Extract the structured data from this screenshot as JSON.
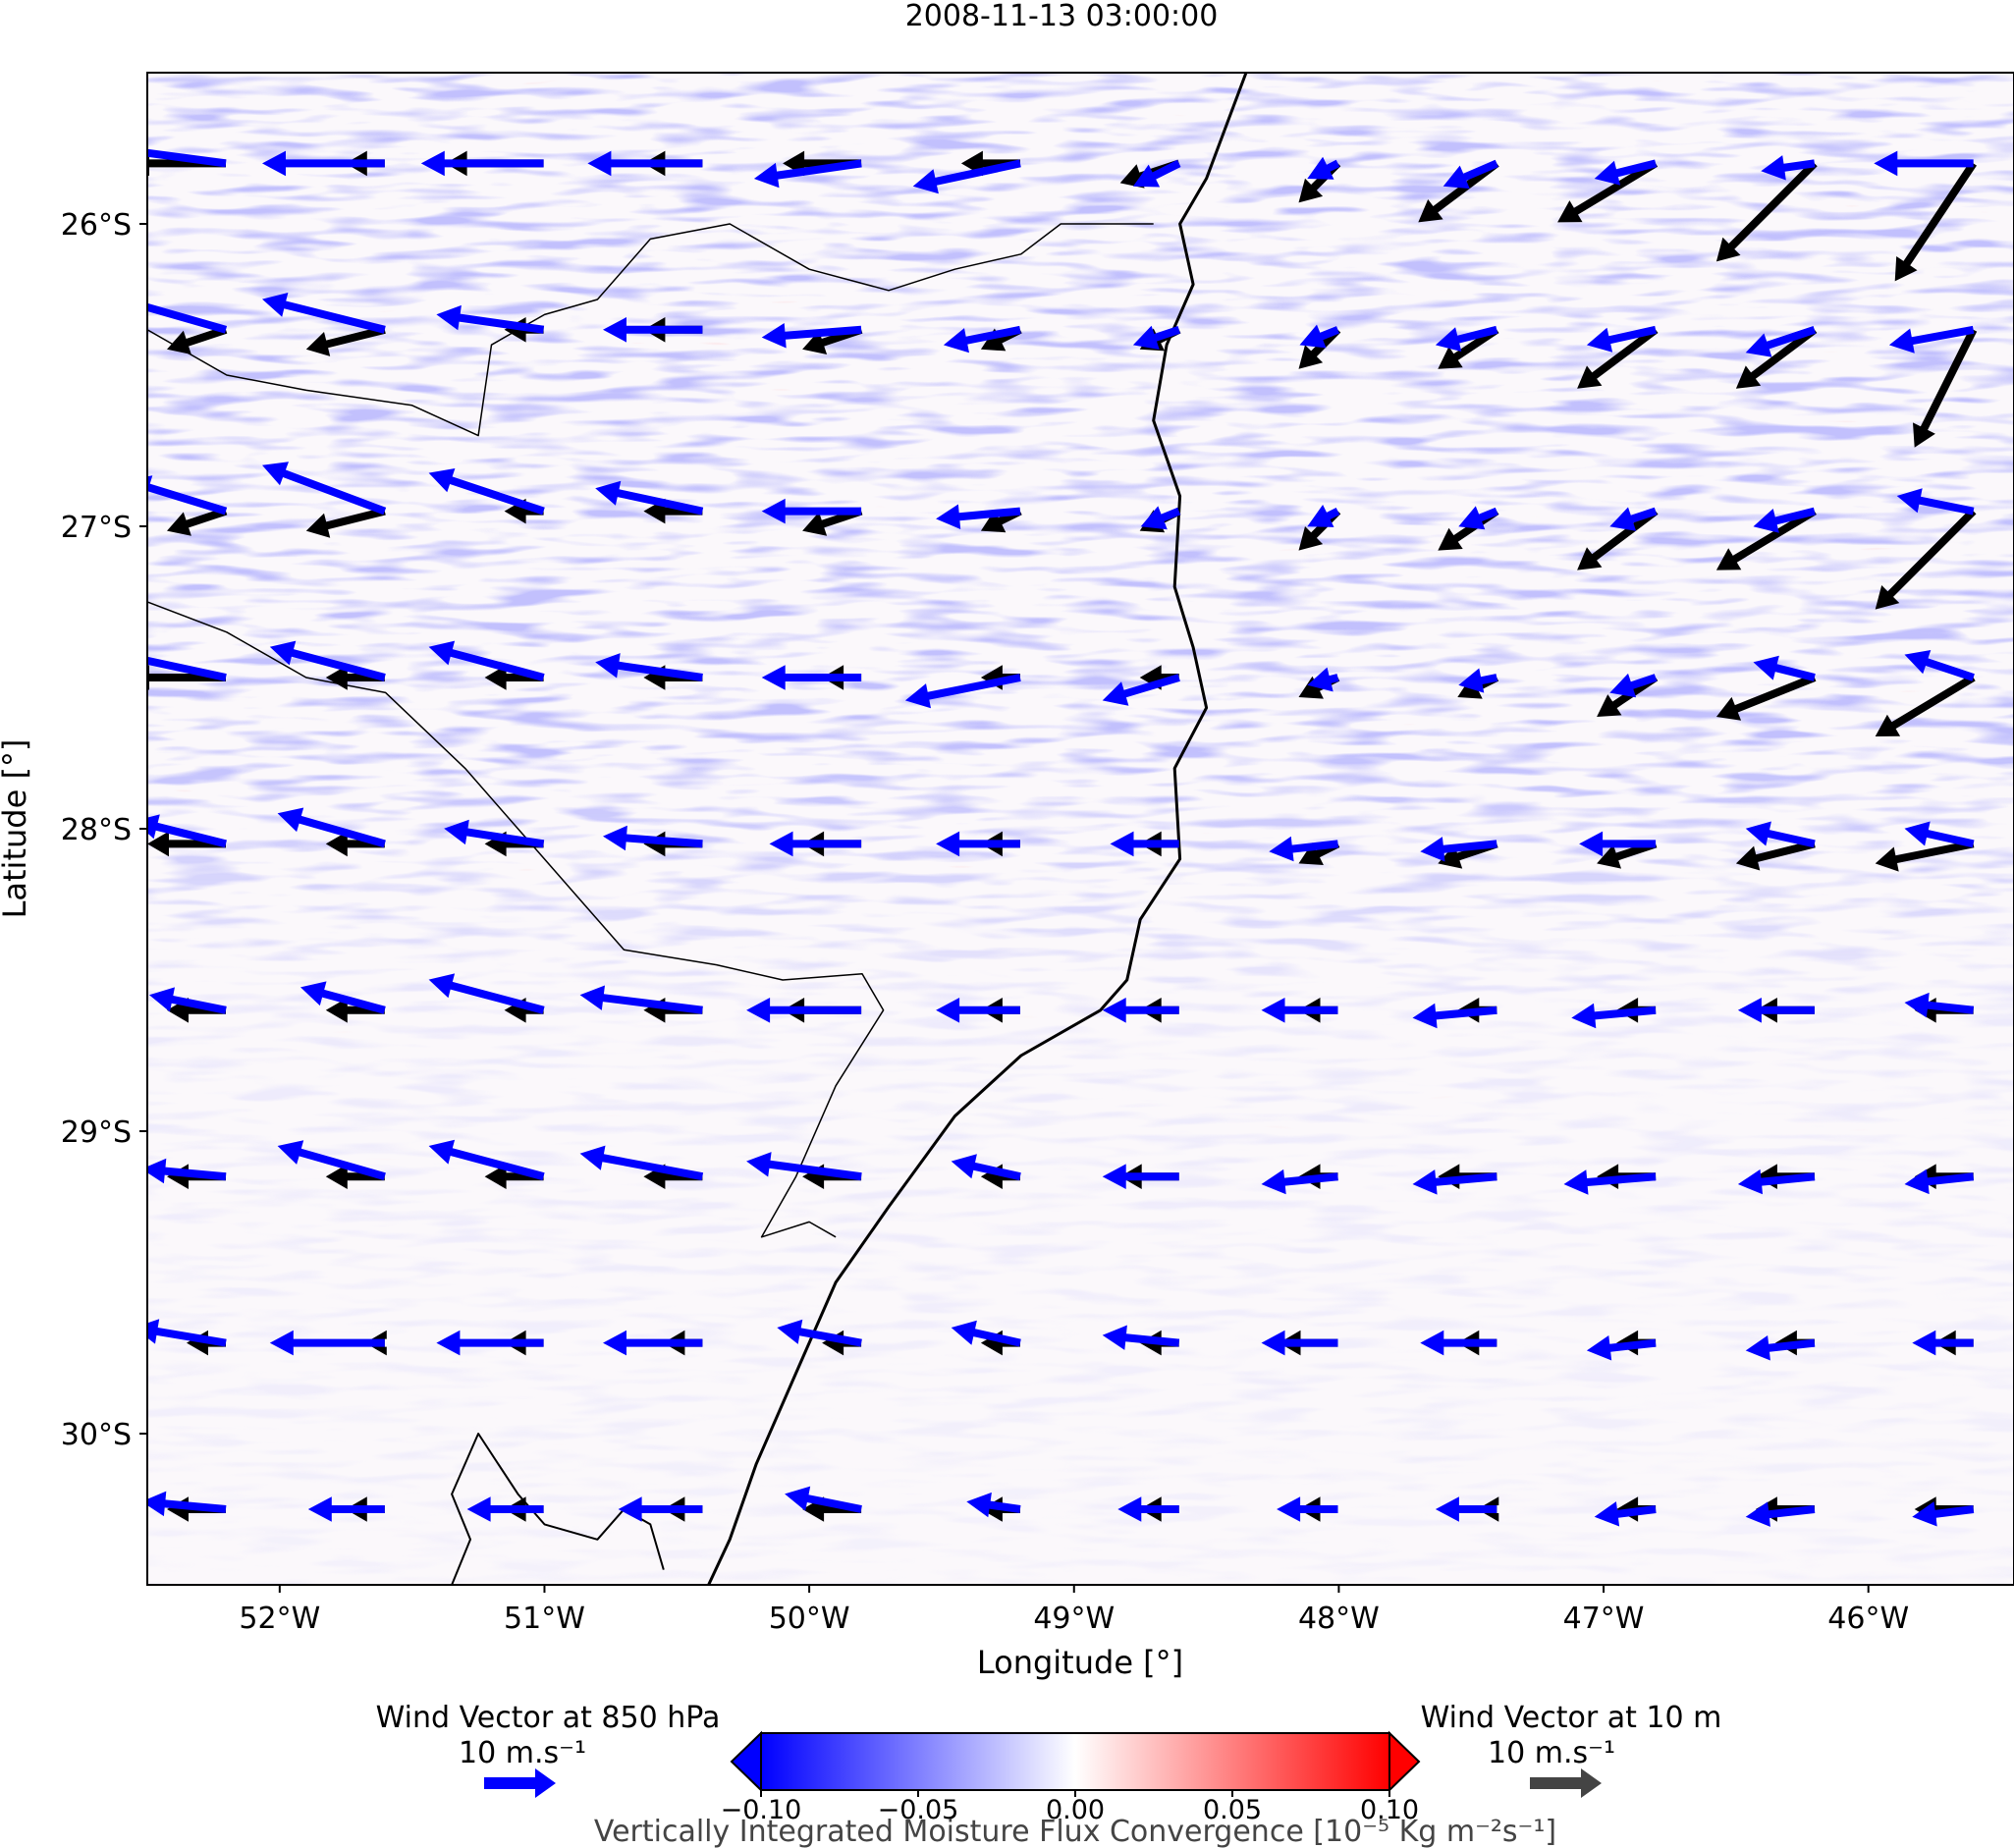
{
  "title": "2008-11-13 03:00:00",
  "x_axis": {
    "label": "Longitude [°]",
    "range": [
      -52.5,
      -45.45
    ],
    "ticks": [
      {
        "value": -52,
        "label": "52°W"
      },
      {
        "value": -51,
        "label": "51°W"
      },
      {
        "value": -50,
        "label": "50°W"
      },
      {
        "value": -49,
        "label": "49°W"
      },
      {
        "value": -48,
        "label": "48°W"
      },
      {
        "value": -47,
        "label": "47°W"
      },
      {
        "value": -46,
        "label": "46°W"
      }
    ]
  },
  "y_axis": {
    "label": "Latitude [°]",
    "range": [
      -30.5,
      -25.5
    ],
    "ticks": [
      {
        "value": -26,
        "label": "26°S"
      },
      {
        "value": -27,
        "label": "27°S"
      },
      {
        "value": -28,
        "label": "28°S"
      },
      {
        "value": -29,
        "label": "29°S"
      },
      {
        "value": -30,
        "label": "30°S"
      }
    ]
  },
  "colorbar": {
    "label": "Vertically Integrated Moisture Flux Convergence [10⁻⁵ Kg m⁻²s⁻¹]",
    "cmap": "bwr",
    "range": [
      -0.1,
      0.1
    ],
    "extend": "both",
    "ticks": [
      {
        "value": -0.1,
        "label": "−0.10"
      },
      {
        "value": -0.05,
        "label": "−0.05"
      },
      {
        "value": 0.0,
        "label": "0.00"
      },
      {
        "value": 0.05,
        "label": "0.05"
      },
      {
        "value": 0.1,
        "label": "0.10"
      }
    ]
  },
  "quiver_keys": {
    "wind_850": {
      "title": "Wind Vector at 850 hPa",
      "value_label": "10 m.s⁻¹",
      "color": "#0000ff"
    },
    "wind_10m": {
      "title": "Wind Vector at 10 m",
      "value_label": "10 m.s⁻¹",
      "color": "#444444"
    }
  },
  "colors": {
    "wind_850": "#0000ff",
    "wind_10m": "#000000",
    "coastline": "#000000"
  },
  "wind_grid": {
    "lons": [
      -52.5,
      -51.9,
      -51.3,
      -50.7,
      -50.1,
      -49.5,
      -48.9,
      -48.3,
      -47.7,
      -47.1,
      -46.5,
      -45.9
    ],
    "lats": [
      -25.8,
      -26.35,
      -26.95,
      -27.5,
      -28.05,
      -28.6,
      -29.15,
      -29.7,
      -30.25
    ],
    "u850": [
      [
        -15,
        -16,
        -16,
        -15,
        -14,
        -14,
        -6,
        -4,
        -7,
        -8,
        -7,
        -13
      ],
      [
        -14,
        -16,
        -14,
        -13,
        -13,
        -10,
        -6,
        -5,
        -8,
        -9,
        -9,
        -11
      ],
      [
        -13,
        -16,
        -15,
        -14,
        -13,
        -11,
        -5,
        -4,
        -5,
        -6,
        -8,
        -10
      ],
      [
        -14,
        -15,
        -15,
        -14,
        -13,
        -15,
        -10,
        -4,
        -5,
        -6,
        -8,
        -9
      ],
      [
        -12,
        -14,
        -13,
        -13,
        -12,
        -11,
        -9,
        -9,
        -10,
        -10,
        -9,
        -9
      ],
      [
        -10,
        -11,
        -15,
        -16,
        -15,
        -11,
        -10,
        -10,
        -11,
        -11,
        -10,
        -9
      ],
      [
        -11,
        -14,
        -15,
        -16,
        -15,
        -9,
        -10,
        -10,
        -11,
        -12,
        -10,
        -9
      ],
      [
        -12,
        -15,
        -14,
        -13,
        -11,
        -9,
        -10,
        -10,
        -10,
        -9,
        -9,
        -8
      ],
      [
        -11,
        -10,
        -10,
        -11,
        -10,
        -7,
        -8,
        -8,
        -8,
        -8,
        -9,
        -8
      ]
    ],
    "v850": [
      [
        2,
        0,
        0,
        0,
        -2,
        -3,
        -3,
        -2,
        -3,
        -2,
        -1,
        0
      ],
      [
        4,
        4,
        2,
        0,
        -1,
        -2,
        -2,
        -2,
        -2,
        -2,
        -3,
        -2
      ],
      [
        4,
        6,
        5,
        3,
        0,
        -1,
        -2,
        -2,
        -2,
        -2,
        -2,
        2
      ],
      [
        3,
        4,
        4,
        2,
        0,
        -3,
        -3,
        -1,
        -1,
        -2,
        2,
        3
      ],
      [
        3,
        4,
        2,
        1,
        0,
        0,
        0,
        -1,
        -1,
        0,
        2,
        2
      ],
      [
        2,
        3,
        4,
        2,
        0,
        0,
        0,
        0,
        -1,
        -1,
        0,
        1
      ],
      [
        1,
        4,
        4,
        3,
        2,
        2,
        0,
        -1,
        -1,
        -1,
        -1,
        -1
      ],
      [
        2,
        0,
        0,
        0,
        2,
        2,
        1,
        0,
        0,
        -1,
        -1,
        0
      ],
      [
        1,
        0,
        0,
        0,
        2,
        1,
        0,
        0,
        0,
        -1,
        -1,
        -1
      ]
    ],
    "u10": [
      [
        -5,
        -2,
        -5,
        -3,
        -4,
        -3,
        -3,
        -2,
        -4,
        -5,
        -5,
        -4
      ],
      [
        -3,
        -4,
        -2,
        -3,
        -3,
        -2,
        -2,
        -2,
        -3,
        -4,
        -4,
        -3
      ],
      [
        -3,
        -4,
        -2,
        -3,
        -3,
        -2,
        -2,
        -2,
        -3,
        -4,
        -5,
        -5
      ],
      [
        -5,
        -3,
        -3,
        -3,
        -2,
        -2,
        -2,
        -2,
        -2,
        -3,
        -5,
        -5
      ],
      [
        -4,
        -3,
        -3,
        -3,
        -3,
        -2,
        -2,
        -2,
        -3,
        -3,
        -4,
        -5
      ],
      [
        -3,
        -3,
        -2,
        -3,
        -4,
        -2,
        -2,
        -2,
        -2,
        -2,
        -3,
        -3
      ],
      [
        -3,
        -3,
        -3,
        -3,
        -3,
        -2,
        -3,
        -2,
        -3,
        -3,
        -3,
        -3
      ],
      [
        -2,
        -1,
        -2,
        -2,
        -2,
        -2,
        -2,
        -3,
        -2,
        -2,
        -2,
        -2
      ],
      [
        -3,
        -2,
        -2,
        -2,
        -3,
        -2,
        -2,
        -2,
        -1,
        -2,
        -3,
        -3
      ]
    ],
    "v10": [
      [
        0,
        0,
        0,
        0,
        0,
        0,
        -1,
        -2,
        -3,
        -3,
        -5,
        -6
      ],
      [
        -1,
        -1,
        0,
        0,
        -1,
        -1,
        -1,
        -2,
        -2,
        -3,
        -3,
        -6
      ],
      [
        -1,
        -1,
        0,
        0,
        -1,
        -1,
        -1,
        -2,
        -2,
        -3,
        -3,
        -5
      ],
      [
        0,
        0,
        0,
        0,
        0,
        0,
        0,
        -1,
        -1,
        -2,
        -2,
        -3
      ],
      [
        0,
        0,
        0,
        0,
        0,
        0,
        0,
        -1,
        -1,
        -1,
        -1,
        -1
      ],
      [
        0,
        0,
        0,
        0,
        0,
        0,
        0,
        0,
        0,
        0,
        0,
        0
      ],
      [
        0,
        0,
        0,
        0,
        0,
        0,
        0,
        0,
        0,
        0,
        0,
        0
      ],
      [
        0,
        0,
        0,
        0,
        0,
        0,
        0,
        0,
        0,
        0,
        0,
        0
      ],
      [
        0,
        0,
        0,
        0,
        0,
        0,
        0,
        0,
        0,
        0,
        0,
        0
      ]
    ]
  }
}
